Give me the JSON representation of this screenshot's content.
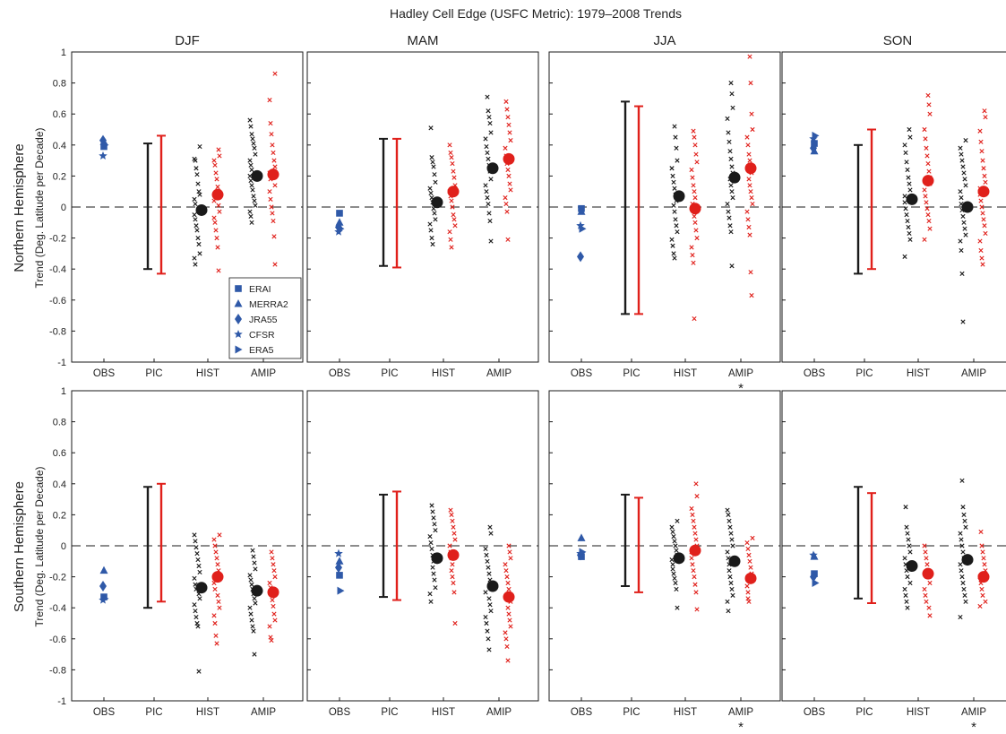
{
  "figure": {
    "title": "Hadley Cell Edge (USFC Metric): 1979–2008 Trends",
    "ylabel": "Trend (Deg. Latitude per Decade)",
    "rows": [
      "Northern Hemisphere",
      "Southern Hemisphere"
    ],
    "seasons": [
      "DJF",
      "MAM",
      "JJA",
      "SON"
    ],
    "categories": [
      "OBS",
      "PIC",
      "HIST",
      "AMIP"
    ],
    "yticks": [
      "1",
      "0.8",
      "0.6",
      "0.4",
      "0.2",
      "0",
      "-0.2",
      "-0.4",
      "-0.6",
      "-0.8",
      "-1"
    ],
    "ylim": [
      -1,
      1
    ],
    "significance_marker": "*",
    "colors": {
      "obs": "#2f59a8",
      "model_a": "#1a1a1a",
      "model_b": "#e0201b"
    },
    "legend": {
      "placement": "bottom-right of NH DJF panel",
      "entries": [
        {
          "label": "ERAI",
          "marker": "square"
        },
        {
          "label": "MERRA2",
          "marker": "triangle-up"
        },
        {
          "label": "JRA55",
          "marker": "diamond"
        },
        {
          "label": "CFSR",
          "marker": "star"
        },
        {
          "label": "ERA5",
          "marker": "triangle-right"
        }
      ]
    }
  },
  "chart_data": [
    {
      "type": "scatter",
      "hemisphere": "NH",
      "season": "DJF",
      "obs": [
        0.39,
        0.42,
        0.43,
        0.33,
        0.4
      ],
      "pic": {
        "black": [
          -0.4,
          0.41
        ],
        "red": [
          -0.43,
          0.46
        ]
      },
      "hist": {
        "black_mean": -0.02,
        "red_mean": 0.08,
        "black_members": [
          0.39,
          0.31,
          0.3,
          0.25,
          0.21,
          0.15,
          0.1,
          0.08,
          0.05,
          0.02,
          -0.02,
          -0.05,
          -0.08,
          -0.12,
          -0.15,
          -0.2,
          -0.24,
          -0.3,
          -0.33,
          -0.37
        ],
        "red_members": [
          0.37,
          0.33,
          0.3,
          0.27,
          0.22,
          0.18,
          0.13,
          0.1,
          0.07,
          0.04,
          0.01,
          -0.03,
          -0.07,
          -0.1,
          -0.15,
          -0.2,
          -0.26,
          -0.41
        ]
      },
      "amip": {
        "black_mean": 0.2,
        "red_mean": 0.21,
        "star": false,
        "black_members": [
          0.56,
          0.52,
          0.47,
          0.44,
          0.41,
          0.38,
          0.34,
          0.3,
          0.27,
          0.24,
          0.2,
          0.17,
          0.14,
          0.11,
          0.07,
          0.04,
          0.01,
          -0.03,
          -0.06,
          -0.1
        ],
        "red_members": [
          0.86,
          0.69,
          0.54,
          0.47,
          0.4,
          0.35,
          0.3,
          0.26,
          0.22,
          0.18,
          0.14,
          0.1,
          0.05,
          0.0,
          -0.04,
          -0.09,
          -0.19,
          -0.37
        ]
      }
    },
    {
      "type": "scatter",
      "hemisphere": "NH",
      "season": "MAM",
      "obs": [
        -0.04,
        -0.1,
        -0.13,
        -0.16,
        -0.14
      ],
      "pic": {
        "black": [
          -0.38,
          0.44
        ],
        "red": [
          -0.39,
          0.44
        ]
      },
      "hist": {
        "black_mean": 0.03,
        "red_mean": 0.1,
        "black_members": [
          0.51,
          0.32,
          0.29,
          0.26,
          0.21,
          0.16,
          0.12,
          0.09,
          0.06,
          0.03,
          -0.01,
          -0.04,
          -0.08,
          -0.11,
          -0.15,
          -0.2,
          -0.24
        ],
        "red_members": [
          0.4,
          0.35,
          0.32,
          0.28,
          0.23,
          0.19,
          0.14,
          0.1,
          0.07,
          0.04,
          0.0,
          -0.05,
          -0.08,
          -0.12,
          -0.16,
          -0.21,
          -0.26
        ]
      },
      "amip": {
        "black_mean": 0.25,
        "red_mean": 0.31,
        "star": false,
        "black_members": [
          0.71,
          0.62,
          0.58,
          0.54,
          0.48,
          0.44,
          0.39,
          0.35,
          0.31,
          0.27,
          0.23,
          0.18,
          0.14,
          0.1,
          0.06,
          0.02,
          -0.04,
          -0.09,
          -0.22
        ],
        "red_members": [
          0.68,
          0.63,
          0.58,
          0.53,
          0.48,
          0.43,
          0.38,
          0.33,
          0.28,
          0.24,
          0.2,
          0.15,
          0.11,
          0.06,
          0.02,
          -0.03,
          -0.21
        ]
      }
    },
    {
      "type": "scatter",
      "hemisphere": "NH",
      "season": "JJA",
      "obs": [
        -0.01,
        -0.03,
        -0.32,
        -0.12,
        -0.14
      ],
      "pic": {
        "black": [
          -0.69,
          0.68
        ],
        "red": [
          -0.69,
          0.65
        ]
      },
      "hist": {
        "black_mean": 0.07,
        "red_mean": -0.01,
        "black_members": [
          0.52,
          0.45,
          0.38,
          0.3,
          0.25,
          0.2,
          0.16,
          0.12,
          0.08,
          0.04,
          0.01,
          -0.03,
          -0.08,
          -0.12,
          -0.16,
          -0.21,
          -0.25,
          -0.3,
          -0.33
        ],
        "red_members": [
          0.49,
          0.45,
          0.4,
          0.34,
          0.29,
          0.24,
          0.19,
          0.14,
          0.1,
          0.06,
          0.02,
          -0.02,
          -0.06,
          -0.1,
          -0.15,
          -0.2,
          -0.26,
          -0.31,
          -0.36,
          -0.72
        ]
      },
      "amip": {
        "black_mean": 0.19,
        "red_mean": 0.25,
        "star": true,
        "black_members": [
          0.8,
          0.73,
          0.64,
          0.57,
          0.48,
          0.42,
          0.36,
          0.31,
          0.26,
          0.22,
          0.18,
          0.14,
          0.1,
          0.06,
          0.02,
          -0.03,
          -0.07,
          -0.12,
          -0.16,
          -0.38
        ],
        "red_members": [
          0.97,
          0.8,
          0.6,
          0.5,
          0.45,
          0.4,
          0.34,
          0.3,
          0.26,
          0.22,
          0.18,
          0.14,
          0.1,
          0.06,
          0.02,
          -0.03,
          -0.08,
          -0.13,
          -0.18,
          -0.42,
          -0.57
        ]
      }
    },
    {
      "type": "scatter",
      "hemisphere": "NH",
      "season": "SON",
      "obs": [
        0.41,
        0.36,
        0.38,
        0.44,
        0.46
      ],
      "pic": {
        "black": [
          -0.43,
          0.4
        ],
        "red": [
          -0.4,
          0.5
        ]
      },
      "hist": {
        "black_mean": 0.05,
        "red_mean": 0.17,
        "black_members": [
          0.5,
          0.45,
          0.4,
          0.35,
          0.29,
          0.24,
          0.19,
          0.15,
          0.11,
          0.07,
          0.03,
          -0.01,
          -0.05,
          -0.09,
          -0.13,
          -0.17,
          -0.21,
          -0.32
        ],
        "red_members": [
          0.72,
          0.66,
          0.6,
          0.5,
          0.44,
          0.38,
          0.33,
          0.28,
          0.23,
          0.19,
          0.15,
          0.11,
          0.07,
          0.03,
          -0.01,
          -0.05,
          -0.09,
          -0.14,
          -0.21
        ]
      },
      "amip": {
        "black_mean": 0.0,
        "red_mean": 0.1,
        "star": false,
        "black_members": [
          0.43,
          0.38,
          0.34,
          0.3,
          0.26,
          0.22,
          0.18,
          0.14,
          0.1,
          0.06,
          0.02,
          -0.02,
          -0.06,
          -0.1,
          -0.14,
          -0.18,
          -0.22,
          -0.28,
          -0.43,
          -0.74
        ],
        "red_members": [
          0.62,
          0.58,
          0.49,
          0.42,
          0.36,
          0.3,
          0.25,
          0.2,
          0.16,
          0.12,
          0.08,
          0.04,
          0.0,
          -0.04,
          -0.08,
          -0.12,
          -0.17,
          -0.22,
          -0.28,
          -0.33,
          -0.37
        ]
      }
    },
    {
      "type": "scatter",
      "hemisphere": "SH",
      "season": "DJF",
      "obs": [
        -0.33,
        -0.16,
        -0.26,
        -0.35,
        -0.34
      ],
      "pic": {
        "black": [
          -0.4,
          0.38
        ],
        "red": [
          -0.36,
          0.4
        ]
      },
      "hist": {
        "black_mean": -0.27,
        "red_mean": -0.2,
        "black_members": [
          0.07,
          0.03,
          -0.01,
          -0.05,
          -0.09,
          -0.13,
          -0.17,
          -0.21,
          -0.25,
          -0.28,
          -0.31,
          -0.34,
          -0.38,
          -0.42,
          -0.46,
          -0.5,
          -0.52,
          -0.81
        ],
        "red_members": [
          0.07,
          0.04,
          0.0,
          -0.04,
          -0.08,
          -0.12,
          -0.16,
          -0.2,
          -0.24,
          -0.28,
          -0.32,
          -0.36,
          -0.4,
          -0.45,
          -0.5,
          -0.58,
          -0.63
        ]
      },
      "amip": {
        "black_mean": -0.29,
        "red_mean": -0.3,
        "star": false,
        "black_members": [
          -0.03,
          -0.07,
          -0.11,
          -0.15,
          -0.19,
          -0.22,
          -0.25,
          -0.28,
          -0.31,
          -0.34,
          -0.37,
          -0.4,
          -0.44,
          -0.48,
          -0.52,
          -0.55,
          -0.7
        ],
        "red_members": [
          -0.04,
          -0.08,
          -0.12,
          -0.16,
          -0.2,
          -0.24,
          -0.27,
          -0.31,
          -0.35,
          -0.39,
          -0.44,
          -0.48,
          -0.52,
          -0.59,
          -0.61
        ]
      }
    },
    {
      "type": "scatter",
      "hemisphere": "SH",
      "season": "MAM",
      "obs": [
        -0.19,
        -0.1,
        -0.14,
        -0.05,
        -0.29
      ],
      "pic": {
        "black": [
          -0.33,
          0.33
        ],
        "red": [
          -0.35,
          0.35
        ]
      },
      "hist": {
        "black_mean": -0.08,
        "red_mean": -0.06,
        "black_members": [
          0.26,
          0.22,
          0.18,
          0.14,
          0.1,
          0.06,
          0.02,
          -0.02,
          -0.06,
          -0.1,
          -0.14,
          -0.18,
          -0.22,
          -0.27,
          -0.31,
          -0.36
        ],
        "red_members": [
          0.23,
          0.2,
          0.16,
          0.12,
          0.08,
          0.04,
          0.0,
          -0.04,
          -0.08,
          -0.12,
          -0.16,
          -0.2,
          -0.24,
          -0.3,
          -0.5
        ]
      },
      "amip": {
        "black_mean": -0.26,
        "red_mean": -0.33,
        "star": false,
        "black_members": [
          0.12,
          0.08,
          -0.02,
          -0.06,
          -0.1,
          -0.14,
          -0.18,
          -0.22,
          -0.26,
          -0.3,
          -0.34,
          -0.38,
          -0.42,
          -0.46,
          -0.5,
          -0.55,
          -0.6,
          -0.67
        ],
        "red_members": [
          0.0,
          -0.04,
          -0.08,
          -0.12,
          -0.16,
          -0.2,
          -0.24,
          -0.28,
          -0.32,
          -0.36,
          -0.4,
          -0.44,
          -0.48,
          -0.52,
          -0.56,
          -0.6,
          -0.65,
          -0.74
        ]
      }
    },
    {
      "type": "scatter",
      "hemisphere": "SH",
      "season": "JJA",
      "obs": [
        -0.07,
        0.05,
        -0.06,
        -0.05,
        -0.04
      ],
      "pic": {
        "black": [
          -0.26,
          0.33
        ],
        "red": [
          -0.3,
          0.31
        ]
      },
      "hist": {
        "black_mean": -0.08,
        "red_mean": -0.03,
        "black_members": [
          0.16,
          0.12,
          0.09,
          0.06,
          0.03,
          0.0,
          -0.03,
          -0.06,
          -0.09,
          -0.12,
          -0.15,
          -0.18,
          -0.21,
          -0.24,
          -0.28,
          -0.4
        ],
        "red_members": [
          0.4,
          0.32,
          0.24,
          0.2,
          0.16,
          0.12,
          0.08,
          0.04,
          0.0,
          -0.04,
          -0.08,
          -0.12,
          -0.16,
          -0.2,
          -0.25,
          -0.3,
          -0.41
        ]
      },
      "amip": {
        "black_mean": -0.1,
        "red_mean": -0.21,
        "star": true,
        "black_members": [
          0.23,
          0.2,
          0.16,
          0.12,
          0.08,
          0.04,
          0.0,
          -0.04,
          -0.08,
          -0.12,
          -0.16,
          -0.2,
          -0.24,
          -0.28,
          -0.32,
          -0.36,
          -0.42
        ],
        "red_members": [
          0.05,
          0.02,
          -0.02,
          -0.06,
          -0.1,
          -0.14,
          -0.18,
          -0.22,
          -0.26,
          -0.3,
          -0.34,
          -0.36
        ]
      }
    },
    {
      "type": "scatter",
      "hemisphere": "SH",
      "season": "SON",
      "obs": [
        -0.18,
        -0.07,
        -0.2,
        -0.06,
        -0.24
      ],
      "pic": {
        "black": [
          -0.34,
          0.38
        ],
        "red": [
          -0.37,
          0.34
        ]
      },
      "hist": {
        "black_mean": -0.13,
        "red_mean": -0.18,
        "black_members": [
          0.25,
          0.12,
          0.08,
          0.04,
          0.0,
          -0.04,
          -0.08,
          -0.12,
          -0.16,
          -0.2,
          -0.24,
          -0.28,
          -0.32,
          -0.36,
          -0.4
        ],
        "red_members": [
          0.0,
          -0.04,
          -0.08,
          -0.12,
          -0.16,
          -0.2,
          -0.24,
          -0.28,
          -0.32,
          -0.36,
          -0.4,
          -0.45
        ]
      },
      "amip": {
        "black_mean": -0.09,
        "red_mean": -0.2,
        "star": true,
        "black_members": [
          0.42,
          0.25,
          0.2,
          0.16,
          0.12,
          0.08,
          0.04,
          0.0,
          -0.04,
          -0.08,
          -0.12,
          -0.16,
          -0.2,
          -0.24,
          -0.28,
          -0.32,
          -0.36,
          -0.46
        ],
        "red_members": [
          0.09,
          0.0,
          -0.04,
          -0.08,
          -0.12,
          -0.16,
          -0.2,
          -0.24,
          -0.28,
          -0.32,
          -0.36,
          -0.39
        ]
      }
    }
  ]
}
